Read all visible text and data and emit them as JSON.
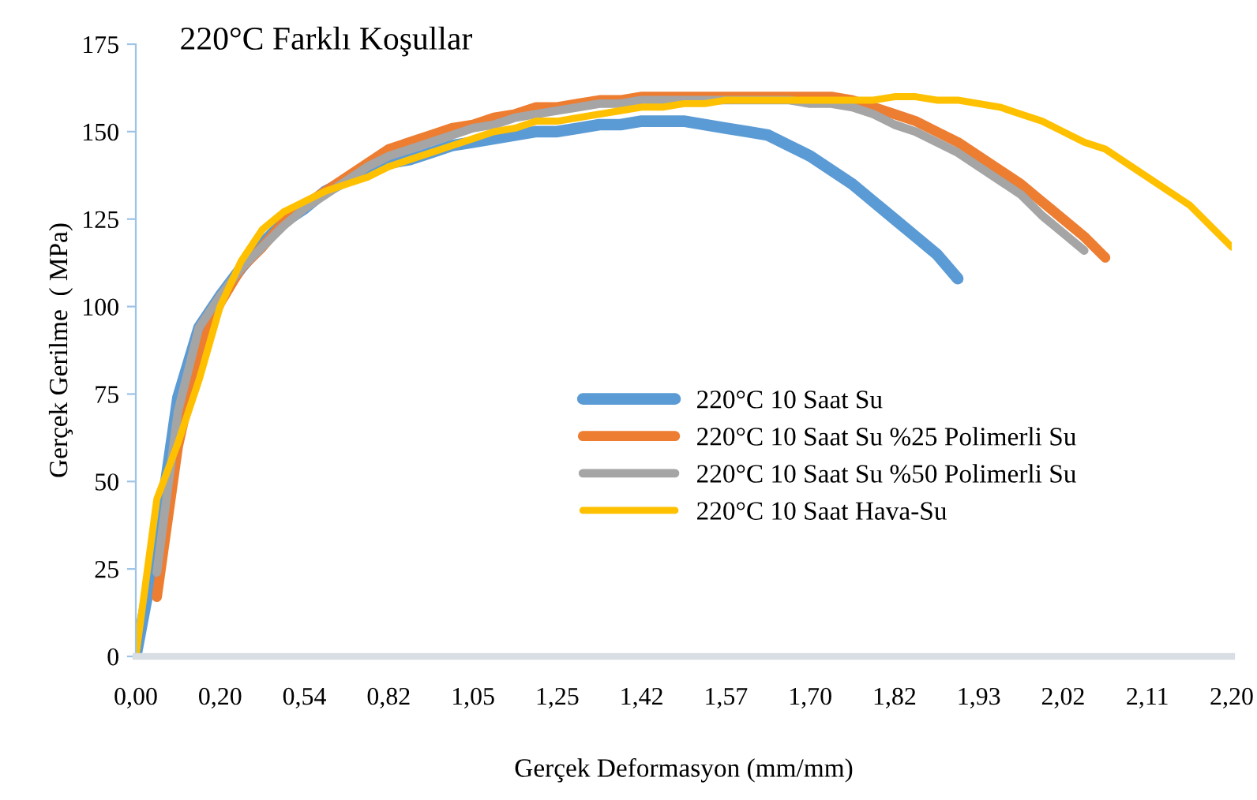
{
  "chart_data": {
    "type": "line",
    "title": "220°C Farklı Koşullar",
    "xlabel": "Gerçek Deformasyon (mm/mm)",
    "ylabel": "Gerçek Gerilme  ( MPa)",
    "categories": [
      "0,00",
      null,
      null,
      null,
      "0,20",
      null,
      null,
      null,
      "0,54",
      null,
      null,
      null,
      "0,82",
      null,
      null,
      null,
      "1,05",
      null,
      null,
      null,
      "1,25",
      null,
      null,
      null,
      "1,42",
      null,
      null,
      null,
      "1,57",
      null,
      null,
      null,
      "1,70",
      null,
      null,
      null,
      "1,82",
      null,
      null,
      null,
      "1,93",
      null,
      null,
      null,
      "2,02",
      null,
      null,
      null,
      "2,11",
      null,
      null,
      null,
      "2,20"
    ],
    "ylim": [
      0,
      175
    ],
    "yticks": [
      0,
      25,
      50,
      75,
      100,
      125,
      150,
      175
    ],
    "grid": false,
    "legend": "center right",
    "marker": "none",
    "line_style": "solid",
    "series": [
      {
        "name": "220°C 10 Saat Su",
        "color": "#5b9bd5",
        "values": [
          0,
          32,
          74,
          94,
          103,
          111,
          118,
          124,
          128,
          133,
          136,
          138,
          141,
          142,
          144,
          146,
          147,
          148,
          149,
          150,
          150,
          151,
          152,
          152,
          153,
          153,
          153,
          152,
          151,
          150,
          149,
          146,
          143,
          139,
          135,
          130,
          125,
          120,
          115,
          108,
          null,
          null,
          null,
          null,
          null,
          null,
          null,
          null,
          null,
          null,
          null,
          null,
          null
        ]
      },
      {
        "name": "220°C 10 Saat Su %25 Polimerli Su",
        "color": "#ed7d31",
        "values": [
          null,
          17,
          60,
          87,
          101,
          111,
          117,
          124,
          129,
          133,
          137,
          141,
          145,
          147,
          149,
          151,
          152,
          154,
          155,
          157,
          157,
          158,
          159,
          159,
          160,
          160,
          160,
          160,
          160,
          160,
          160,
          160,
          160,
          160,
          159,
          157,
          155,
          153,
          150,
          147,
          143,
          139,
          135,
          130,
          125,
          120,
          114,
          null,
          null,
          null,
          null,
          null,
          null
        ]
      },
      {
        "name": "220°C 10 Saat Su %50 Polimerli Su",
        "color": "#a5a5a5",
        "values": [
          null,
          24,
          70,
          94,
          103,
          111,
          117,
          123,
          128,
          132,
          136,
          140,
          143,
          145,
          147,
          149,
          151,
          152,
          154,
          155,
          156,
          157,
          158,
          158,
          159,
          159,
          159,
          159,
          159,
          159,
          159,
          159,
          158,
          158,
          157,
          155,
          152,
          150,
          147,
          144,
          140,
          136,
          132,
          126,
          121,
          116,
          null,
          null,
          null,
          null,
          null,
          null,
          null
        ]
      },
      {
        "name": "220°C 10 Saat Hava-Su",
        "color": "#ffc000",
        "values": [
          0,
          45,
          61,
          79,
          100,
          113,
          122,
          127,
          130,
          133,
          135,
          137,
          140,
          142,
          144,
          146,
          148,
          150,
          151,
          153,
          153,
          154,
          155,
          156,
          157,
          157,
          158,
          158,
          159,
          159,
          159,
          159,
          159,
          159,
          159,
          159,
          160,
          160,
          159,
          159,
          158,
          157,
          155,
          153,
          150,
          147,
          145,
          141,
          137,
          133,
          129,
          123,
          117
        ]
      }
    ]
  }
}
